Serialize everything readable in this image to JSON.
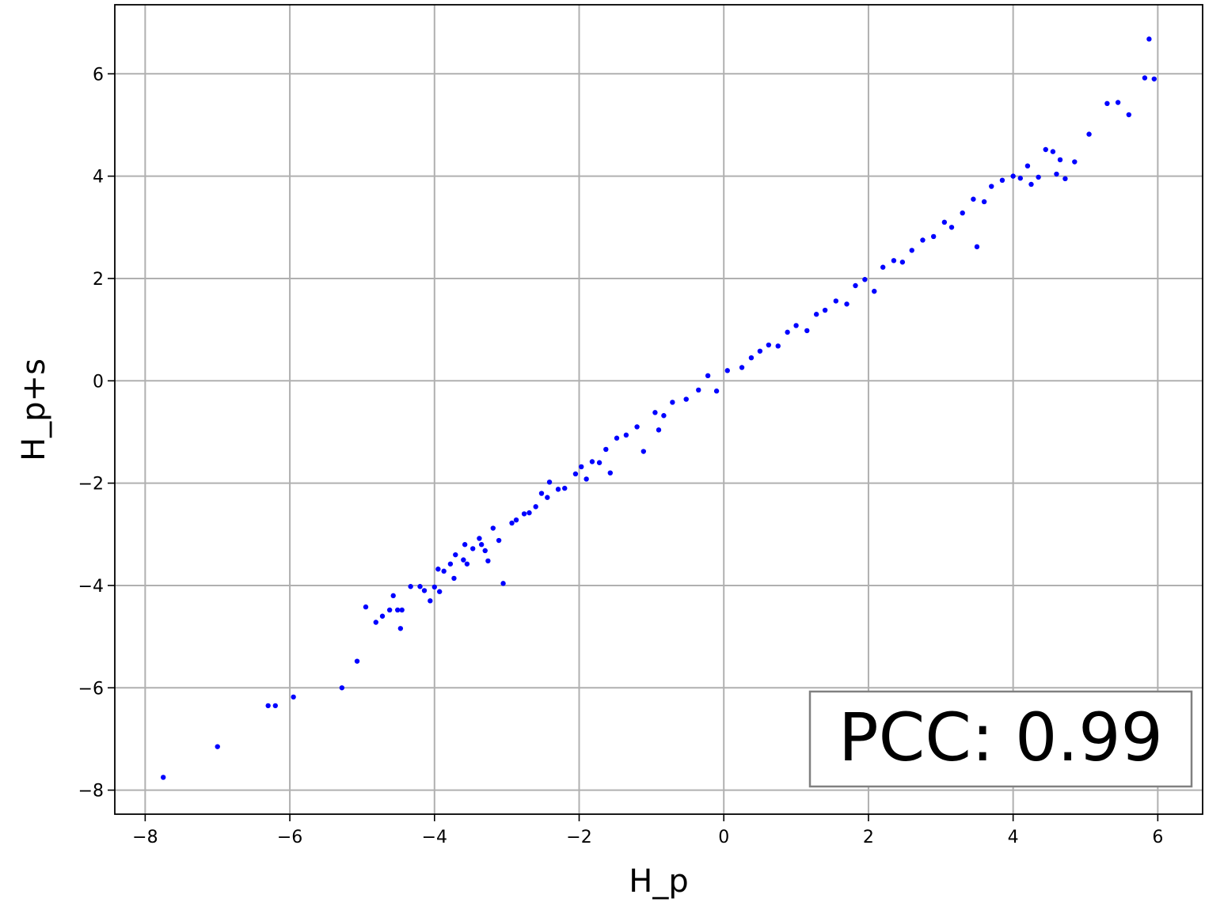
{
  "chart_data": {
    "type": "scatter",
    "title": "",
    "xlabel": "H_p",
    "ylabel": "H_p+s",
    "xlim": [
      -8.42,
      6.62
    ],
    "ylim": [
      -8.47,
      7.35
    ],
    "xticks": [
      -8,
      -6,
      -4,
      -2,
      0,
      2,
      4,
      6
    ],
    "yticks": [
      -8,
      -6,
      -4,
      -2,
      0,
      2,
      4,
      6
    ],
    "xtick_labels": [
      "−8",
      "−6",
      "−4",
      "−2",
      "0",
      "2",
      "4",
      "6"
    ],
    "ytick_labels": [
      "−8",
      "−6",
      "−4",
      "−2",
      "0",
      "2",
      "4",
      "6"
    ],
    "grid": true,
    "marker_color": "#0000ff",
    "annotation": "PCC: 0.99",
    "annotation_position": "bottom-right",
    "series": [
      {
        "x": [
          -7.75,
          -7.0,
          -6.3,
          -6.2,
          -5.95,
          -5.28,
          -5.07,
          -4.95,
          -4.81,
          -4.72,
          -4.62,
          -4.57,
          -4.51,
          -4.47,
          -4.45,
          -4.33,
          -4.2,
          -4.14,
          -4.06,
          -4.0,
          -3.95,
          -3.93,
          -3.87,
          -3.78,
          -3.73,
          -3.71,
          -3.6,
          -3.58,
          -3.55,
          -3.47,
          -3.38,
          -3.35,
          -3.3,
          -3.26,
          -3.19,
          -3.11,
          -3.05,
          -2.93,
          -2.87,
          -2.76,
          -2.69,
          -2.6,
          -2.52,
          -2.44,
          -2.41,
          -2.29,
          -2.2,
          -2.05,
          -1.97,
          -1.9,
          -1.82,
          -1.72,
          -1.63,
          -1.57,
          -1.48,
          -1.35,
          -1.2,
          -1.11,
          -0.95,
          -0.9,
          -0.83,
          -0.71,
          -0.52,
          -0.35,
          -0.22,
          -0.1,
          0.05,
          0.25,
          0.38,
          0.5,
          0.62,
          0.75,
          0.88,
          1.0,
          1.15,
          1.28,
          1.4,
          1.55,
          1.7,
          1.82,
          1.95,
          2.08,
          2.2,
          2.35,
          2.47,
          2.6,
          2.75,
          2.9,
          3.05,
          3.15,
          3.3,
          3.45,
          3.5,
          3.6,
          3.7,
          3.85,
          4.0,
          4.1,
          4.2,
          4.25,
          4.35,
          4.45,
          4.55,
          4.6,
          4.65,
          4.72,
          4.85,
          5.05,
          5.3,
          5.45,
          5.6,
          5.82,
          5.88,
          5.95
        ],
        "y": [
          -7.75,
          -7.15,
          -6.35,
          -6.35,
          -6.18,
          -6.0,
          -5.48,
          -4.42,
          -4.72,
          -4.6,
          -4.48,
          -4.2,
          -4.48,
          -4.84,
          -4.48,
          -4.02,
          -4.02,
          -4.1,
          -4.3,
          -4.03,
          -3.68,
          -4.12,
          -3.72,
          -3.58,
          -3.86,
          -3.4,
          -3.5,
          -3.2,
          -3.58,
          -3.28,
          -3.08,
          -3.2,
          -3.32,
          -3.52,
          -2.88,
          -3.12,
          -3.96,
          -2.78,
          -2.72,
          -2.6,
          -2.58,
          -2.46,
          -2.2,
          -2.28,
          -1.98,
          -2.12,
          -2.1,
          -1.82,
          -1.68,
          -1.92,
          -1.58,
          -1.6,
          -1.34,
          -1.8,
          -1.12,
          -1.06,
          -0.9,
          -1.38,
          -0.62,
          -0.96,
          -0.68,
          -0.42,
          -0.36,
          -0.18,
          0.1,
          -0.2,
          0.2,
          0.26,
          0.45,
          0.58,
          0.7,
          0.68,
          0.95,
          1.08,
          0.98,
          1.3,
          1.38,
          1.56,
          1.5,
          1.86,
          1.98,
          1.75,
          2.22,
          2.35,
          2.32,
          2.55,
          2.75,
          2.82,
          3.1,
          3.0,
          3.28,
          3.55,
          2.62,
          3.5,
          3.8,
          3.92,
          4.0,
          3.96,
          4.2,
          3.84,
          3.98,
          4.52,
          4.48,
          4.04,
          4.32,
          3.95,
          4.28,
          4.82,
          5.42,
          5.44,
          5.2,
          5.92,
          6.68,
          5.9
        ]
      }
    ]
  }
}
